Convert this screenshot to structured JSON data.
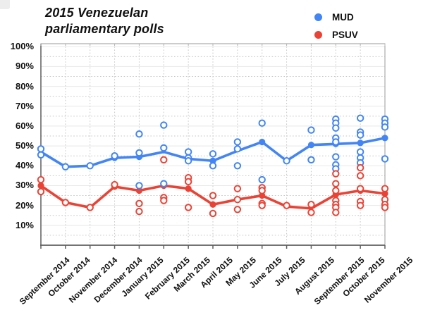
{
  "title": {
    "line1": "2015 Venezuelan",
    "line2": "parliamentary polls"
  },
  "legend": {
    "items": [
      {
        "label": "MUD",
        "color": "#4285F4"
      },
      {
        "label": "PSUV",
        "color": "#EA4335"
      }
    ]
  },
  "chart_data": {
    "type": "line",
    "title": "2015 Venezuelan parliamentary polls",
    "xlabel": "",
    "ylabel": "",
    "ylim": [
      0,
      100
    ],
    "grid": {
      "major_horizontal": "solid",
      "minor_horizontal": "dotted every 5%",
      "vertical": "dotted at each month"
    },
    "legend_position": "top-right",
    "y_ticks": [
      {
        "value": 100,
        "label": "100%"
      },
      {
        "value": 90,
        "label": "90%"
      },
      {
        "value": 80,
        "label": "80%"
      },
      {
        "value": 70,
        "label": "70%"
      },
      {
        "value": 60,
        "label": "60%"
      },
      {
        "value": 50,
        "label": "50%"
      },
      {
        "value": 40,
        "label": "40%"
      },
      {
        "value": 30,
        "label": "30%"
      },
      {
        "value": 20,
        "label": "20%"
      },
      {
        "value": 10,
        "label": "10%"
      }
    ],
    "categories": [
      "September 2014",
      "October 2014",
      "November 2014",
      "December 2014",
      "January 2015",
      "February 2015",
      "March 2015",
      "April 2015",
      "May 2015",
      "June 2015",
      "July 2015",
      "August 2015",
      "September 2015",
      "October 2015",
      "November 2015"
    ],
    "series": [
      {
        "name": "MUD",
        "color": "#4285F4",
        "role": "trend-line",
        "values": [
          47,
          39.5,
          40,
          44,
          44.5,
          47,
          43.5,
          42.5,
          47.5,
          52,
          42.5,
          50.5,
          51,
          51.5,
          54
        ],
        "dot_months": [
          3,
          4,
          7,
          9,
          11,
          12,
          13,
          14
        ]
      },
      {
        "name": "PSUV",
        "color": "#EA4335",
        "role": "trend-line",
        "values": [
          30,
          21.5,
          19,
          29.5,
          27.5,
          30,
          28.5,
          20.5,
          23,
          25,
          19.5,
          18.5,
          25.5,
          27.5,
          26
        ],
        "dot_months": [
          0,
          3,
          4,
          5,
          6,
          7,
          9,
          12,
          13,
          14
        ]
      }
    ],
    "scatter_series": [
      {
        "name": "MUD individual polls",
        "color": "#4285F4",
        "points_by_month": [
          [
            48.5,
            45.5
          ],
          [
            39.5
          ],
          [
            40
          ],
          [
            45
          ],
          [
            56,
            46.5,
            30
          ],
          [
            60.5,
            49,
            31
          ],
          [
            47,
            44,
            42.5
          ],
          [
            46,
            40
          ],
          [
            52,
            48.5,
            40
          ],
          [
            61.5,
            33
          ],
          [
            42.5
          ],
          [
            58,
            43
          ],
          [
            63.5,
            61.5,
            59,
            54,
            52,
            44.5,
            40.5,
            38.5
          ],
          [
            64,
            57,
            55.5,
            47,
            44,
            41.5
          ],
          [
            63.5,
            61.5,
            59.5,
            43.5
          ]
        ]
      },
      {
        "name": "PSUV individual polls",
        "color": "#EA4335",
        "points_by_month": [
          [
            33,
            27
          ],
          [
            21.5
          ],
          [
            19
          ],
          [
            30.5
          ],
          [
            21,
            17
          ],
          [
            43,
            24,
            22.5
          ],
          [
            34,
            32,
            19
          ],
          [
            25,
            16
          ],
          [
            28.5,
            23,
            18
          ],
          [
            29,
            27.5,
            21,
            20
          ],
          [
            20
          ],
          [
            20.5,
            16.5
          ],
          [
            36,
            31,
            27.5,
            22.5,
            20.5,
            19,
            16.5
          ],
          [
            39,
            35,
            28.5,
            22,
            20
          ],
          [
            28.5,
            23,
            20.5,
            19
          ]
        ]
      }
    ]
  }
}
